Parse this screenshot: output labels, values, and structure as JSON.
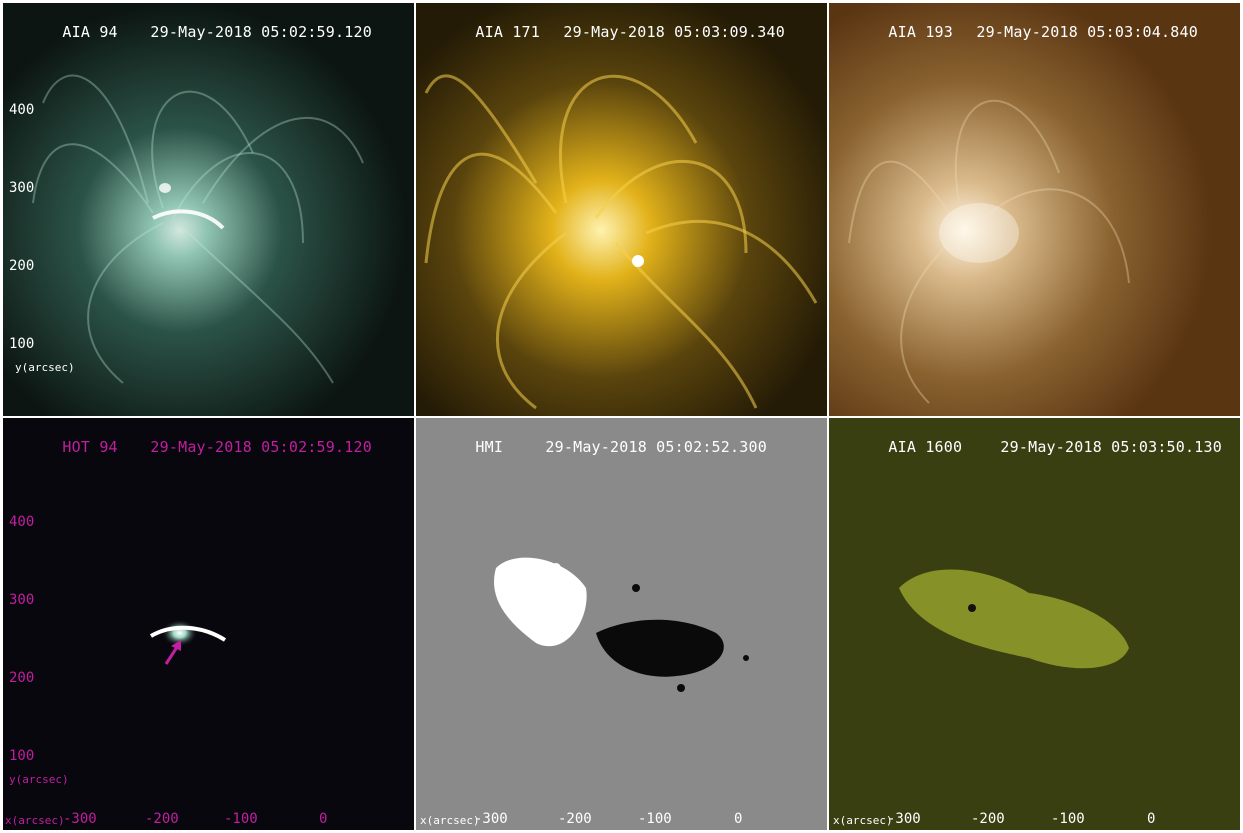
{
  "panels": [
    {
      "instrument": "AIA 94",
      "timestamp": "29-May-2018 05:02:59.120",
      "header_color": "#ffffff"
    },
    {
      "instrument": "AIA 171",
      "timestamp": "29-May-2018 05:03:09.340",
      "header_color": "#ffffff"
    },
    {
      "instrument": "AIA 193",
      "timestamp": "29-May-2018 05:03:04.840",
      "header_color": "#ffffff"
    },
    {
      "instrument": "HOT 94",
      "timestamp": "29-May-2018 05:02:59.120",
      "header_color": "#c21fa0"
    },
    {
      "instrument": "HMI",
      "timestamp": "29-May-2018 05:02:52.300",
      "header_color": "#ffffff"
    },
    {
      "instrument": "AIA 1600",
      "timestamp": "29-May-2018 05:03:50.130",
      "header_color": "#ffffff"
    }
  ],
  "y_ticks": [
    "400",
    "300",
    "200",
    "100"
  ],
  "y_label": "y(arcsec)",
  "x_ticks": [
    "-300",
    "-200",
    "-100",
    "0"
  ],
  "x_label": "x(arcsec)",
  "colors": {
    "aia94": "#9fd8c4",
    "aia171": "#e2b21a",
    "aia193": "#d9b98a",
    "hot94_axis": "#c21fa0",
    "hmi_gray": "#8a8a8a",
    "aia1600": "#8f9a2a"
  }
}
